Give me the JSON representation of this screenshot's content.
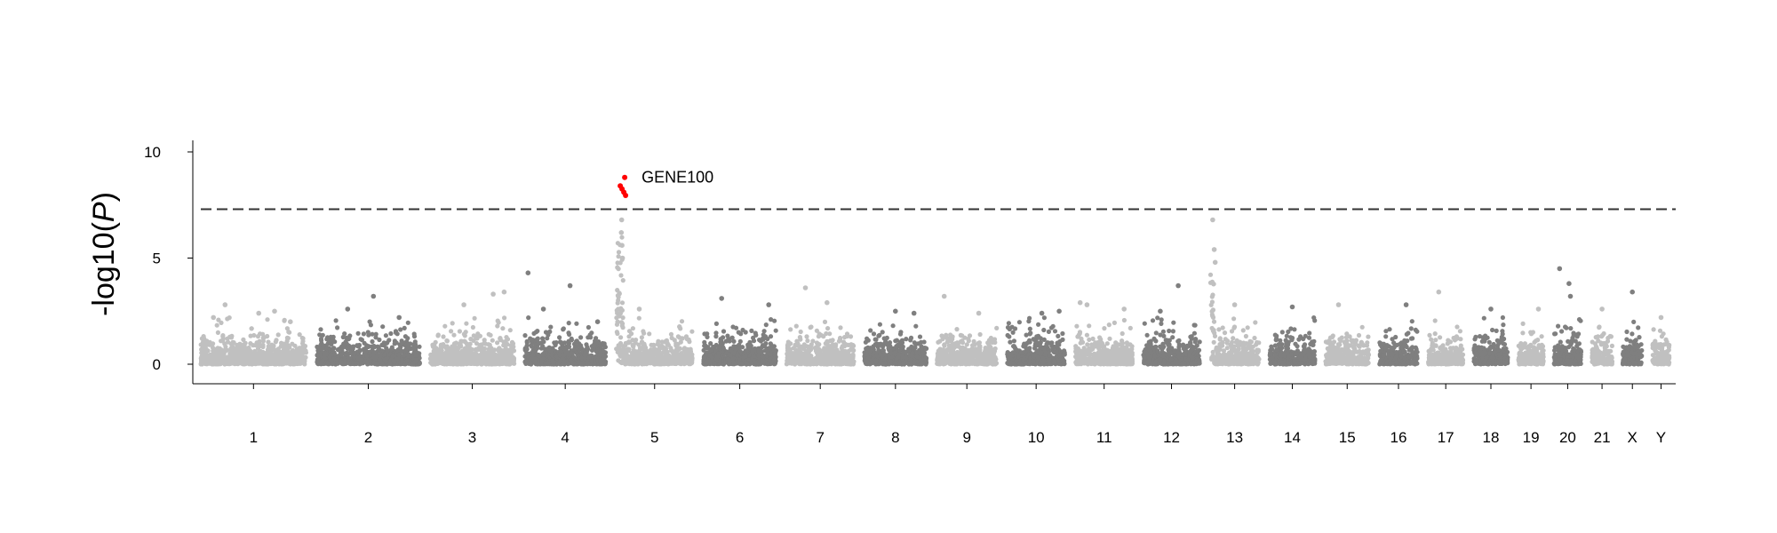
{
  "chart_data": {
    "type": "scatter",
    "subtype": "manhattan",
    "title": "",
    "xlabel": "",
    "ylabel": "-log10(P)",
    "ylabel_parts": {
      "prefix": "-log10(",
      "var": "P",
      "suffix": ")"
    },
    "ylim": [
      -1,
      10.5
    ],
    "yticks": [
      0,
      5,
      10
    ],
    "grid": false,
    "legend": "none",
    "significance_threshold": 7.3,
    "colors": {
      "odd": "#c0c0c0",
      "even": "#7f7f7f",
      "hit": "#ff0000",
      "threshold": "#333333"
    },
    "chromosomes": [
      {
        "label": "1",
        "length": 249,
        "points": [
          [
            0.12,
            2.2
          ],
          [
            0.23,
            2.8
          ],
          [
            0.55,
            2.4
          ],
          [
            0.7,
            2.5
          ],
          [
            0.85,
            2.0
          ]
        ]
      },
      {
        "label": "2",
        "length": 243,
        "points": [
          [
            0.3,
            2.6
          ],
          [
            0.55,
            3.2
          ],
          [
            0.8,
            2.2
          ]
        ]
      },
      {
        "label": "3",
        "length": 198,
        "points": [
          [
            0.4,
            2.8
          ],
          [
            0.75,
            3.3
          ],
          [
            0.88,
            3.4
          ]
        ]
      },
      {
        "label": "4",
        "length": 191,
        "points": [
          [
            0.04,
            4.3
          ],
          [
            0.23,
            2.6
          ],
          [
            0.56,
            3.7
          ],
          [
            0.9,
            2.0
          ]
        ]
      },
      {
        "label": "5",
        "length": 181,
        "points": [
          [
            0.065,
            6.2
          ],
          [
            0.07,
            6.8
          ],
          [
            0.075,
            5.6
          ],
          [
            0.08,
            5.0
          ],
          [
            0.3,
            2.6
          ]
        ]
      },
      {
        "label": "6",
        "length": 171,
        "points": [
          [
            0.25,
            3.1
          ],
          [
            0.9,
            2.8
          ]
        ]
      },
      {
        "label": "7",
        "length": 159,
        "points": [
          [
            0.28,
            3.6
          ],
          [
            0.6,
            2.9
          ]
        ]
      },
      {
        "label": "8",
        "length": 146,
        "points": [
          [
            0.5,
            2.5
          ],
          [
            0.8,
            2.4
          ]
        ]
      },
      {
        "label": "9",
        "length": 141,
        "points": [
          [
            0.12,
            3.2
          ],
          [
            0.7,
            2.4
          ]
        ]
      },
      {
        "label": "10",
        "length": 136,
        "points": [
          [
            0.6,
            2.4
          ],
          [
            0.9,
            2.5
          ]
        ]
      },
      {
        "label": "11",
        "length": 135,
        "points": [
          [
            0.08,
            2.9
          ],
          [
            0.2,
            2.8
          ],
          [
            0.85,
            2.6
          ]
        ]
      },
      {
        "label": "12",
        "length": 133,
        "points": [
          [
            0.62,
            3.7
          ],
          [
            0.3,
            2.5
          ]
        ]
      },
      {
        "label": "13",
        "length": 115,
        "points": [
          [
            0.05,
            6.8
          ],
          [
            0.08,
            5.4
          ],
          [
            0.1,
            4.8
          ],
          [
            0.5,
            2.8
          ]
        ]
      },
      {
        "label": "14",
        "length": 107,
        "points": [
          [
            0.5,
            2.7
          ]
        ]
      },
      {
        "label": "15",
        "length": 102,
        "points": [
          [
            0.3,
            2.8
          ]
        ]
      },
      {
        "label": "16",
        "length": 90,
        "points": [
          [
            0.7,
            2.8
          ]
        ]
      },
      {
        "label": "17",
        "length": 83,
        "points": [
          [
            0.3,
            3.4
          ]
        ]
      },
      {
        "label": "18",
        "length": 80,
        "points": [
          [
            0.5,
            2.6
          ]
        ]
      },
      {
        "label": "19",
        "length": 59,
        "points": [
          [
            0.8,
            2.6
          ]
        ]
      },
      {
        "label": "20",
        "length": 64,
        "points": [
          [
            0.2,
            4.5
          ],
          [
            0.55,
            3.8
          ],
          [
            0.6,
            3.2
          ]
        ]
      },
      {
        "label": "21",
        "length": 48,
        "points": [
          [
            0.5,
            2.6
          ]
        ]
      },
      {
        "label": "X",
        "length": 45,
        "points": [
          [
            0.5,
            3.4
          ]
        ]
      },
      {
        "label": "Y",
        "length": 40,
        "points": [
          [
            0.5,
            2.2
          ]
        ]
      }
    ],
    "peak": {
      "chromosome": "5",
      "position": 0.075,
      "hit_values": [
        8.8,
        8.4,
        8.25,
        8.1,
        7.95
      ]
    },
    "annotations": [
      {
        "text": "GENE100",
        "chromosome": "5",
        "y": 8.8
      }
    ]
  }
}
